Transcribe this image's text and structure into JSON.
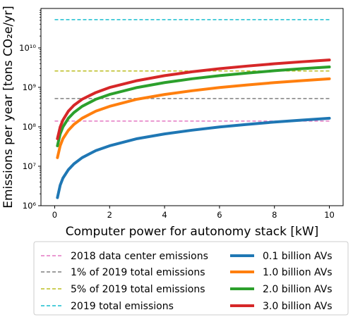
{
  "chart_data": {
    "type": "line",
    "xlabel": "Computer power for autonomy stack [kW]",
    "ylabel": "Emissions per year [tons CO₂e/yr]",
    "xlim": [
      -0.5,
      10.5
    ],
    "ylim": [
      1000000,
      100000000000
    ],
    "yscale": "log",
    "grid": false,
    "legend_placement": "bottom",
    "x_ticks": [
      0,
      2,
      4,
      6,
      8,
      10
    ],
    "y_ticks": [
      {
        "value": 1000000,
        "label": "10⁶"
      },
      {
        "value": 10000000,
        "label": "10⁷"
      },
      {
        "value": 100000000,
        "label": "10⁸"
      },
      {
        "value": 1000000000,
        "label": "10⁹"
      },
      {
        "value": 10000000000,
        "label": "10¹⁰"
      }
    ],
    "reference_lines": [
      {
        "name": "2018 data center emissions",
        "value": 140000000,
        "color": "#e377c2"
      },
      {
        "name": "1% of 2019 total emissions",
        "value": 520000000,
        "color": "#7f7f7f"
      },
      {
        "name": "5% of 2019 total emissions",
        "value": 2600000000,
        "color": "#bcbd22"
      },
      {
        "name": "2019 total emissions",
        "value": 52000000000,
        "color": "#17becf"
      }
    ],
    "x": [
      0.1,
      0.2,
      0.3,
      0.5,
      0.7,
      1,
      1.5,
      2,
      3,
      4,
      5,
      6,
      7,
      8,
      9,
      10
    ],
    "series": [
      {
        "name": "0.1 billion AVs",
        "color": "#1f77b4",
        "values": [
          1600000,
          3300000,
          5000000,
          8200000,
          11500000,
          16500000,
          25000000,
          33000000,
          50000000,
          66000000,
          82000000,
          99000000,
          115000000,
          132000000,
          148000000,
          165000000
        ]
      },
      {
        "name": "1.0 billion AVs",
        "color": "#ff7f0e",
        "values": [
          16500000,
          33000000,
          50000000,
          82000000,
          115000000,
          165000000,
          250000000,
          330000000,
          500000000,
          660000000,
          820000000,
          990000000,
          1150000000,
          1320000000,
          1480000000,
          1650000000
        ]
      },
      {
        "name": "2.0 billion AVs",
        "color": "#2ca02c",
        "values": [
          33000000,
          66000000,
          99000000,
          165000000,
          230000000,
          330000000,
          500000000,
          660000000,
          990000000,
          1320000000,
          1650000000,
          1980000000,
          2300000000,
          2640000000,
          2970000000,
          3300000000
        ]
      },
      {
        "name": "3.0 billion AVs",
        "color": "#d62728",
        "values": [
          50000000,
          99000000,
          148000000,
          250000000,
          350000000,
          500000000,
          740000000,
          990000000,
          1480000000,
          1980000000,
          2480000000,
          2970000000,
          3460000000,
          3960000000,
          4450000000,
          4950000000
        ]
      }
    ]
  }
}
